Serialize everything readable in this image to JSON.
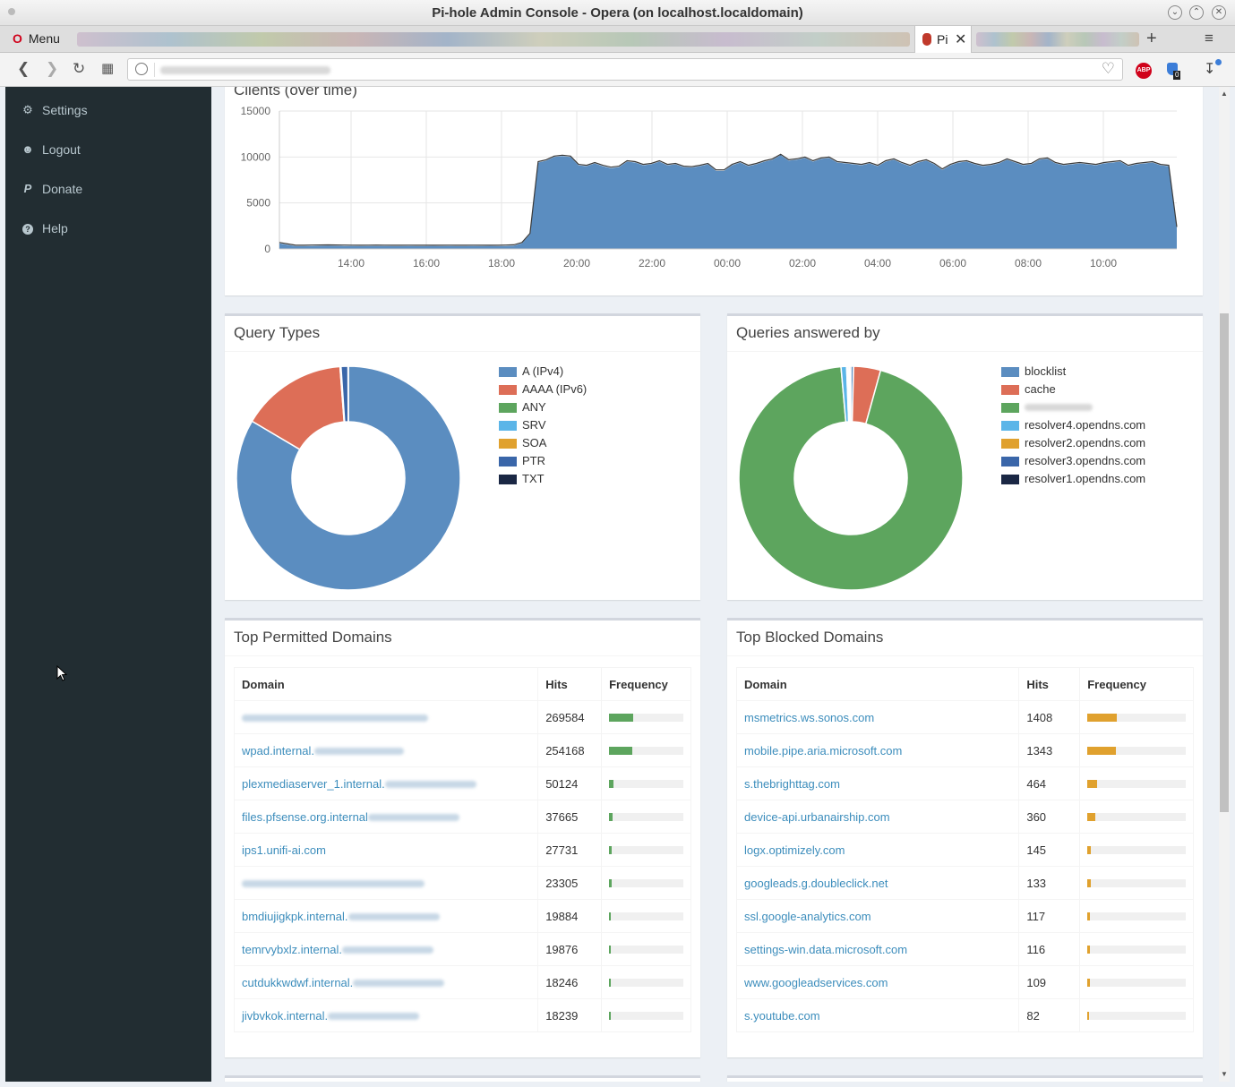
{
  "window": {
    "title": "Pi-hole Admin Console - Opera (on localhost.localdomain)"
  },
  "browser": {
    "menu_label": "Menu",
    "active_tab_label": "Pi",
    "new_tab": "+",
    "abp_label": "ABP",
    "ext_count": "0"
  },
  "sidebar": {
    "items": [
      {
        "label": "Settings",
        "icon": "gears-icon"
      },
      {
        "label": "Logout",
        "icon": "user-times-icon"
      },
      {
        "label": "Donate",
        "icon": "paypal-icon"
      },
      {
        "label": "Help",
        "icon": "question-circle-icon"
      }
    ]
  },
  "clients_chart": {
    "title": "Clients (over time)",
    "chart_data": {
      "type": "area",
      "title": "Clients (over time)",
      "x_ticks": [
        "14:00",
        "16:00",
        "18:00",
        "20:00",
        "22:00",
        "00:00",
        "02:00",
        "04:00",
        "06:00",
        "08:00",
        "10:00"
      ],
      "y_ticks": [
        "0",
        "5000",
        "10000",
        "15000"
      ],
      "ylim": [
        0,
        15000
      ],
      "grid": true,
      "series_color": "#5b8dc0",
      "values": [
        600,
        450,
        300,
        300,
        320,
        330,
        340,
        330,
        320,
        310,
        300,
        310,
        320,
        310,
        300,
        300,
        310,
        300,
        300,
        310,
        300,
        310,
        300,
        300,
        310,
        300,
        310,
        300,
        320,
        350,
        600,
        1600,
        9400,
        9600,
        10000,
        10100,
        10000,
        9100,
        9000,
        9300,
        9000,
        8800,
        8900,
        9500,
        9400,
        9100,
        9200,
        9500,
        9100,
        9200,
        8900,
        8850,
        9000,
        9200,
        8500,
        8500,
        9100,
        9400,
        9000,
        9200,
        9500,
        9700,
        10200,
        9600,
        9700,
        9900,
        9500,
        9800,
        9900,
        9400,
        9300,
        9200,
        9100,
        9300,
        9000,
        9500,
        9700,
        9300,
        9000,
        9400,
        9600,
        9200,
        8600,
        9100,
        9400,
        9500,
        9200,
        9000,
        9100,
        9300,
        9700,
        9400,
        9100,
        9200,
        9700,
        9800,
        9300,
        9100,
        9200,
        9300,
        9200,
        9100,
        9300,
        9400,
        9500,
        9000,
        9200,
        9300,
        9400,
        9100,
        9000,
        2300
      ]
    }
  },
  "query_types": {
    "title": "Query Types",
    "chart_data": {
      "type": "pie",
      "title": "Query Types",
      "slices": [
        {
          "label": "A (IPv4)",
          "value": 83.5,
          "color": "#5b8dc0"
        },
        {
          "label": "AAAA (IPv6)",
          "value": 15.3,
          "color": "#dd6e57"
        },
        {
          "label": "ANY",
          "value": 0.0,
          "color": "#5da55e"
        },
        {
          "label": "SRV",
          "value": 0.1,
          "color": "#5bb5e8"
        },
        {
          "label": "SOA",
          "value": 0.05,
          "color": "#e0a12e"
        },
        {
          "label": "PTR",
          "value": 1.0,
          "color": "#3a66a9"
        },
        {
          "label": "TXT",
          "value": 0.05,
          "color": "#1a2744"
        }
      ]
    }
  },
  "answered_by": {
    "title": "Queries answered by",
    "chart_data": {
      "type": "pie",
      "title": "Queries answered by",
      "slices": [
        {
          "label": "blocklist",
          "value": 0.4,
          "color": "#5b8dc0"
        },
        {
          "label": "cache",
          "value": 3.9,
          "color": "#dd6e57"
        },
        {
          "label": "",
          "value": 94.3,
          "color": "#5da55e"
        },
        {
          "label": "resolver4.opendns.com",
          "value": 0.8,
          "color": "#5bb5e8"
        },
        {
          "label": "resolver2.opendns.com",
          "value": 0.2,
          "color": "#e0a12e"
        },
        {
          "label": "resolver3.opendns.com",
          "value": 0.2,
          "color": "#3a66a9"
        },
        {
          "label": "resolver1.opendns.com",
          "value": 0.2,
          "color": "#1a2744"
        }
      ]
    }
  },
  "top_permitted": {
    "title": "Top Permitted Domains",
    "headers": [
      "Domain",
      "Hits",
      "Frequency"
    ],
    "bar_color": "#5da55e",
    "rows": [
      {
        "domain": "",
        "hits": "269584",
        "frequency": 0.33
      },
      {
        "domain": "wpad.internal.",
        "hits": "254168",
        "frequency": 0.31
      },
      {
        "domain": "plexmediaserver_1.internal.",
        "hits": "50124",
        "frequency": 0.06
      },
      {
        "domain": "files.pfsense.org.internal",
        "hits": "37665",
        "frequency": 0.05
      },
      {
        "domain": "ips1.unifi-ai.com",
        "hits": "27731",
        "frequency": 0.035
      },
      {
        "domain": "",
        "hits": "23305",
        "frequency": 0.03
      },
      {
        "domain": "bmdiujigkpk.internal.",
        "hits": "19884",
        "frequency": 0.025
      },
      {
        "domain": "temrvybxlz.internal.",
        "hits": "19876",
        "frequency": 0.025
      },
      {
        "domain": "cutdukkwdwf.internal.",
        "hits": "18246",
        "frequency": 0.022
      },
      {
        "domain": "jivbvkok.internal.",
        "hits": "18239",
        "frequency": 0.022
      }
    ]
  },
  "top_blocked": {
    "title": "Top Blocked Domains",
    "headers": [
      "Domain",
      "Hits",
      "Frequency"
    ],
    "bar_color": "#e0a12e",
    "rows": [
      {
        "domain": "msmetrics.ws.sonos.com",
        "hits": "1408",
        "frequency": 0.3
      },
      {
        "domain": "mobile.pipe.aria.microsoft.com",
        "hits": "1343",
        "frequency": 0.29
      },
      {
        "domain": "s.thebrighttag.com",
        "hits": "464",
        "frequency": 0.1
      },
      {
        "domain": "device-api.urbanairship.com",
        "hits": "360",
        "frequency": 0.08
      },
      {
        "domain": "logx.optimizely.com",
        "hits": "145",
        "frequency": 0.03
      },
      {
        "domain": "googleads.g.doubleclick.net",
        "hits": "133",
        "frequency": 0.03
      },
      {
        "domain": "ssl.google-analytics.com",
        "hits": "117",
        "frequency": 0.025
      },
      {
        "domain": "settings-win.data.microsoft.com",
        "hits": "116",
        "frequency": 0.025
      },
      {
        "domain": "www.googleadservices.com",
        "hits": "109",
        "frequency": 0.023
      },
      {
        "domain": "s.youtube.com",
        "hits": "82",
        "frequency": 0.018
      }
    ]
  }
}
